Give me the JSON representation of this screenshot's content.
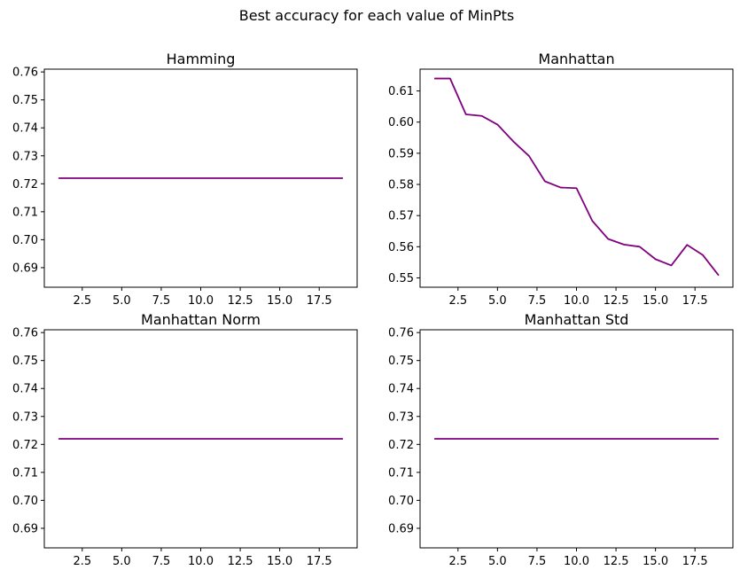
{
  "figure": {
    "suptitle": "Best accuracy for each value of MinPts",
    "line_color": "#800080"
  },
  "chart_data": [
    {
      "type": "line",
      "title": "Hamming",
      "xlabel": "",
      "ylabel": "",
      "xlim": [
        0.1,
        19.9
      ],
      "ylim": [
        0.683,
        0.761
      ],
      "xticks": [
        2.5,
        5.0,
        7.5,
        10.0,
        12.5,
        15.0,
        17.5
      ],
      "xtick_labels": [
        "2.5",
        "5.0",
        "7.5",
        "10.0",
        "12.5",
        "15.0",
        "17.5"
      ],
      "yticks": [
        0.69,
        0.7,
        0.71,
        0.72,
        0.73,
        0.74,
        0.75,
        0.76
      ],
      "ytick_labels": [
        "0.69",
        "0.70",
        "0.71",
        "0.72",
        "0.73",
        "0.74",
        "0.75",
        "0.76"
      ],
      "grid": false,
      "series": [
        {
          "x": [
            1,
            2,
            3,
            4,
            5,
            6,
            7,
            8,
            9,
            10,
            11,
            12,
            13,
            14,
            15,
            16,
            17,
            18,
            19
          ],
          "y": [
            0.722,
            0.722,
            0.722,
            0.722,
            0.722,
            0.722,
            0.722,
            0.722,
            0.722,
            0.722,
            0.722,
            0.722,
            0.722,
            0.722,
            0.722,
            0.722,
            0.722,
            0.722,
            0.722
          ]
        }
      ]
    },
    {
      "type": "line",
      "title": "Manhattan",
      "xlabel": "",
      "ylabel": "",
      "xlim": [
        0.1,
        19.9
      ],
      "ylim": [
        0.547,
        0.617
      ],
      "xticks": [
        2.5,
        5.0,
        7.5,
        10.0,
        12.5,
        15.0,
        17.5
      ],
      "xtick_labels": [
        "2.5",
        "5.0",
        "7.5",
        "10.0",
        "12.5",
        "15.0",
        "17.5"
      ],
      "yticks": [
        0.55,
        0.56,
        0.57,
        0.58,
        0.59,
        0.6,
        0.61
      ],
      "ytick_labels": [
        "0.55",
        "0.56",
        "0.57",
        "0.58",
        "0.59",
        "0.60",
        "0.61"
      ],
      "grid": false,
      "series": [
        {
          "x": [
            1,
            2,
            3,
            4,
            5,
            6,
            7,
            8,
            9,
            10,
            11,
            12,
            13,
            14,
            15,
            16,
            17,
            18,
            19
          ],
          "y": [
            0.614,
            0.614,
            0.6025,
            0.602,
            0.5992,
            0.5938,
            0.5891,
            0.581,
            0.579,
            0.5788,
            0.5683,
            0.5625,
            0.5607,
            0.56,
            0.556,
            0.554,
            0.5606,
            0.5573,
            0.5508
          ]
        }
      ]
    },
    {
      "type": "line",
      "title": "Manhattan Norm",
      "xlabel": "",
      "ylabel": "",
      "xlim": [
        0.1,
        19.9
      ],
      "ylim": [
        0.683,
        0.761
      ],
      "xticks": [
        2.5,
        5.0,
        7.5,
        10.0,
        12.5,
        15.0,
        17.5
      ],
      "xtick_labels": [
        "2.5",
        "5.0",
        "7.5",
        "10.0",
        "12.5",
        "15.0",
        "17.5"
      ],
      "yticks": [
        0.69,
        0.7,
        0.71,
        0.72,
        0.73,
        0.74,
        0.75,
        0.76
      ],
      "ytick_labels": [
        "0.69",
        "0.70",
        "0.71",
        "0.72",
        "0.73",
        "0.74",
        "0.75",
        "0.76"
      ],
      "grid": false,
      "series": [
        {
          "x": [
            1,
            2,
            3,
            4,
            5,
            6,
            7,
            8,
            9,
            10,
            11,
            12,
            13,
            14,
            15,
            16,
            17,
            18,
            19
          ],
          "y": [
            0.722,
            0.722,
            0.722,
            0.722,
            0.722,
            0.722,
            0.722,
            0.722,
            0.722,
            0.722,
            0.722,
            0.722,
            0.722,
            0.722,
            0.722,
            0.722,
            0.722,
            0.722,
            0.722
          ]
        }
      ]
    },
    {
      "type": "line",
      "title": "Manhattan Std",
      "xlabel": "",
      "ylabel": "",
      "xlim": [
        0.1,
        19.9
      ],
      "ylim": [
        0.683,
        0.761
      ],
      "xticks": [
        2.5,
        5.0,
        7.5,
        10.0,
        12.5,
        15.0,
        17.5
      ],
      "xtick_labels": [
        "2.5",
        "5.0",
        "7.5",
        "10.0",
        "12.5",
        "15.0",
        "17.5"
      ],
      "yticks": [
        0.69,
        0.7,
        0.71,
        0.72,
        0.73,
        0.74,
        0.75,
        0.76
      ],
      "ytick_labels": [
        "0.69",
        "0.70",
        "0.71",
        "0.72",
        "0.73",
        "0.74",
        "0.75",
        "0.76"
      ],
      "grid": false,
      "series": [
        {
          "x": [
            1,
            2,
            3,
            4,
            5,
            6,
            7,
            8,
            9,
            10,
            11,
            12,
            13,
            14,
            15,
            16,
            17,
            18,
            19
          ],
          "y": [
            0.722,
            0.722,
            0.722,
            0.722,
            0.722,
            0.722,
            0.722,
            0.722,
            0.722,
            0.722,
            0.722,
            0.722,
            0.722,
            0.722,
            0.722,
            0.722,
            0.722,
            0.722,
            0.722
          ]
        }
      ]
    }
  ]
}
